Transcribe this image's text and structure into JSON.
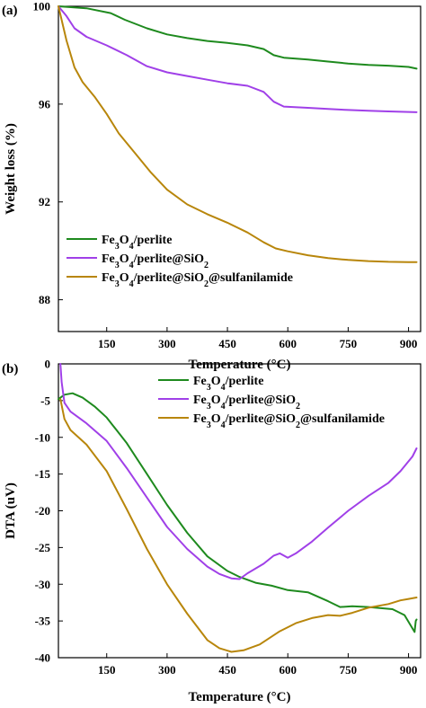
{
  "chart_data": [
    {
      "type": "line",
      "panel_label": "(a)",
      "xlabel": "Temperature (°C)",
      "ylabel": "Weight loss (%)",
      "xlim": [
        30,
        930
      ],
      "ylim": [
        86.7,
        100
      ],
      "x_ticks": [
        "150",
        "300",
        "450",
        "600",
        "750",
        "900"
      ],
      "y_ticks": [
        "88",
        "92",
        "96",
        "100"
      ],
      "grid": false,
      "legend_position": "bottom-left",
      "series": [
        {
          "name": "Fe3O4/perlite",
          "color": "#1e8a1e",
          "points": [
            [
              30,
              100
            ],
            [
              100,
              99.92
            ],
            [
              160,
              99.72
            ],
            [
              195,
              99.45
            ],
            [
              250,
              99.1
            ],
            [
              300,
              98.85
            ],
            [
              350,
              98.7
            ],
            [
              400,
              98.58
            ],
            [
              450,
              98.5
            ],
            [
              500,
              98.4
            ],
            [
              540,
              98.25
            ],
            [
              565,
              98.0
            ],
            [
              590,
              97.9
            ],
            [
              650,
              97.82
            ],
            [
              700,
              97.74
            ],
            [
              750,
              97.66
            ],
            [
              800,
              97.6
            ],
            [
              850,
              97.57
            ],
            [
              900,
              97.52
            ],
            [
              920,
              97.45
            ]
          ]
        },
        {
          "name": "Fe3O4/perlite@SiO2",
          "color": "#a040e8",
          "points": [
            [
              30,
              100
            ],
            [
              50,
              99.6
            ],
            [
              70,
              99.1
            ],
            [
              100,
              98.75
            ],
            [
              150,
              98.4
            ],
            [
              200,
              98.0
            ],
            [
              250,
              97.55
            ],
            [
              300,
              97.3
            ],
            [
              350,
              97.15
            ],
            [
              400,
              97.0
            ],
            [
              450,
              96.85
            ],
            [
              500,
              96.75
            ],
            [
              540,
              96.5
            ],
            [
              565,
              96.1
            ],
            [
              590,
              95.9
            ],
            [
              650,
              95.85
            ],
            [
              700,
              95.8
            ],
            [
              750,
              95.76
            ],
            [
              800,
              95.73
            ],
            [
              850,
              95.7
            ],
            [
              900,
              95.68
            ],
            [
              920,
              95.67
            ]
          ]
        },
        {
          "name": "Fe3O4/perlite@SiO2@sulfanilamide",
          "color": "#b8860b",
          "points": [
            [
              30,
              100
            ],
            [
              50,
              98.6
            ],
            [
              70,
              97.5
            ],
            [
              90,
              96.9
            ],
            [
              120,
              96.3
            ],
            [
              150,
              95.6
            ],
            [
              180,
              94.8
            ],
            [
              220,
              94.0
            ],
            [
              260,
              93.2
            ],
            [
              300,
              92.5
            ],
            [
              350,
              91.9
            ],
            [
              400,
              91.5
            ],
            [
              450,
              91.15
            ],
            [
              500,
              90.75
            ],
            [
              540,
              90.35
            ],
            [
              570,
              90.1
            ],
            [
              600,
              89.98
            ],
            [
              650,
              89.82
            ],
            [
              700,
              89.7
            ],
            [
              750,
              89.63
            ],
            [
              800,
              89.58
            ],
            [
              850,
              89.55
            ],
            [
              900,
              89.54
            ],
            [
              920,
              89.54
            ]
          ]
        }
      ]
    },
    {
      "type": "line",
      "panel_label": "(b)",
      "xlabel": "Temperature (°C)",
      "ylabel": "DTA (uV)",
      "xlim": [
        30,
        930
      ],
      "ylim": [
        -40,
        0
      ],
      "x_ticks": [
        "150",
        "300",
        "450",
        "600",
        "750",
        "900"
      ],
      "y_ticks": [
        "0",
        "-5",
        "-10",
        "-15",
        "-20",
        "-25",
        "-30",
        "-35",
        "-40"
      ],
      "grid": false,
      "legend_position": "top-right",
      "series": [
        {
          "name": "Fe3O4/perlite",
          "color": "#1e8a1e",
          "points": [
            [
              30,
              -4.8
            ],
            [
              45,
              -4.2
            ],
            [
              65,
              -4.0
            ],
            [
              90,
              -4.6
            ],
            [
              120,
              -5.8
            ],
            [
              150,
              -7.3
            ],
            [
              200,
              -10.8
            ],
            [
              250,
              -15.0
            ],
            [
              300,
              -19.2
            ],
            [
              350,
              -23.0
            ],
            [
              400,
              -26.2
            ],
            [
              450,
              -28.2
            ],
            [
              480,
              -29.0
            ],
            [
              520,
              -29.8
            ],
            [
              560,
              -30.2
            ],
            [
              600,
              -30.8
            ],
            [
              650,
              -31.1
            ],
            [
              700,
              -32.3
            ],
            [
              730,
              -33.1
            ],
            [
              760,
              -33.0
            ],
            [
              800,
              -33.1
            ],
            [
              860,
              -33.4
            ],
            [
              890,
              -34.2
            ],
            [
              915,
              -36.5
            ],
            [
              918,
              -35.0
            ],
            [
              920,
              -34.8
            ]
          ]
        },
        {
          "name": "Fe3O4/perlite@SiO2",
          "color": "#a040e8",
          "points": [
            [
              35,
              0
            ],
            [
              38,
              -2.5
            ],
            [
              45,
              -5.3
            ],
            [
              60,
              -6.5
            ],
            [
              100,
              -8.1
            ],
            [
              150,
              -10.5
            ],
            [
              200,
              -14.2
            ],
            [
              250,
              -18.2
            ],
            [
              300,
              -22.2
            ],
            [
              350,
              -25.2
            ],
            [
              400,
              -27.6
            ],
            [
              430,
              -28.6
            ],
            [
              460,
              -29.2
            ],
            [
              480,
              -29.3
            ],
            [
              500,
              -28.5
            ],
            [
              540,
              -27.2
            ],
            [
              565,
              -26.1
            ],
            [
              580,
              -25.8
            ],
            [
              600,
              -26.4
            ],
            [
              620,
              -25.8
            ],
            [
              660,
              -24.2
            ],
            [
              700,
              -22.3
            ],
            [
              750,
              -20.0
            ],
            [
              800,
              -18.0
            ],
            [
              850,
              -16.2
            ],
            [
              880,
              -14.6
            ],
            [
              910,
              -12.6
            ],
            [
              920,
              -11.5
            ]
          ]
        },
        {
          "name": "Fe3O4/perlite@SiO2@sulfanilamide",
          "color": "#b8860b",
          "points": [
            [
              35,
              -4.8
            ],
            [
              45,
              -7.5
            ],
            [
              60,
              -9.0
            ],
            [
              100,
              -11.0
            ],
            [
              150,
              -14.6
            ],
            [
              200,
              -19.8
            ],
            [
              250,
              -25.2
            ],
            [
              300,
              -30.0
            ],
            [
              350,
              -34.0
            ],
            [
              400,
              -37.6
            ],
            [
              430,
              -38.7
            ],
            [
              460,
              -39.2
            ],
            [
              490,
              -39.0
            ],
            [
              530,
              -38.2
            ],
            [
              580,
              -36.4
            ],
            [
              620,
              -35.3
            ],
            [
              660,
              -34.6
            ],
            [
              700,
              -34.2
            ],
            [
              730,
              -34.3
            ],
            [
              760,
              -33.9
            ],
            [
              800,
              -33.2
            ],
            [
              850,
              -32.7
            ],
            [
              880,
              -32.2
            ],
            [
              900,
              -32.0
            ],
            [
              920,
              -31.8
            ]
          ]
        }
      ]
    }
  ]
}
